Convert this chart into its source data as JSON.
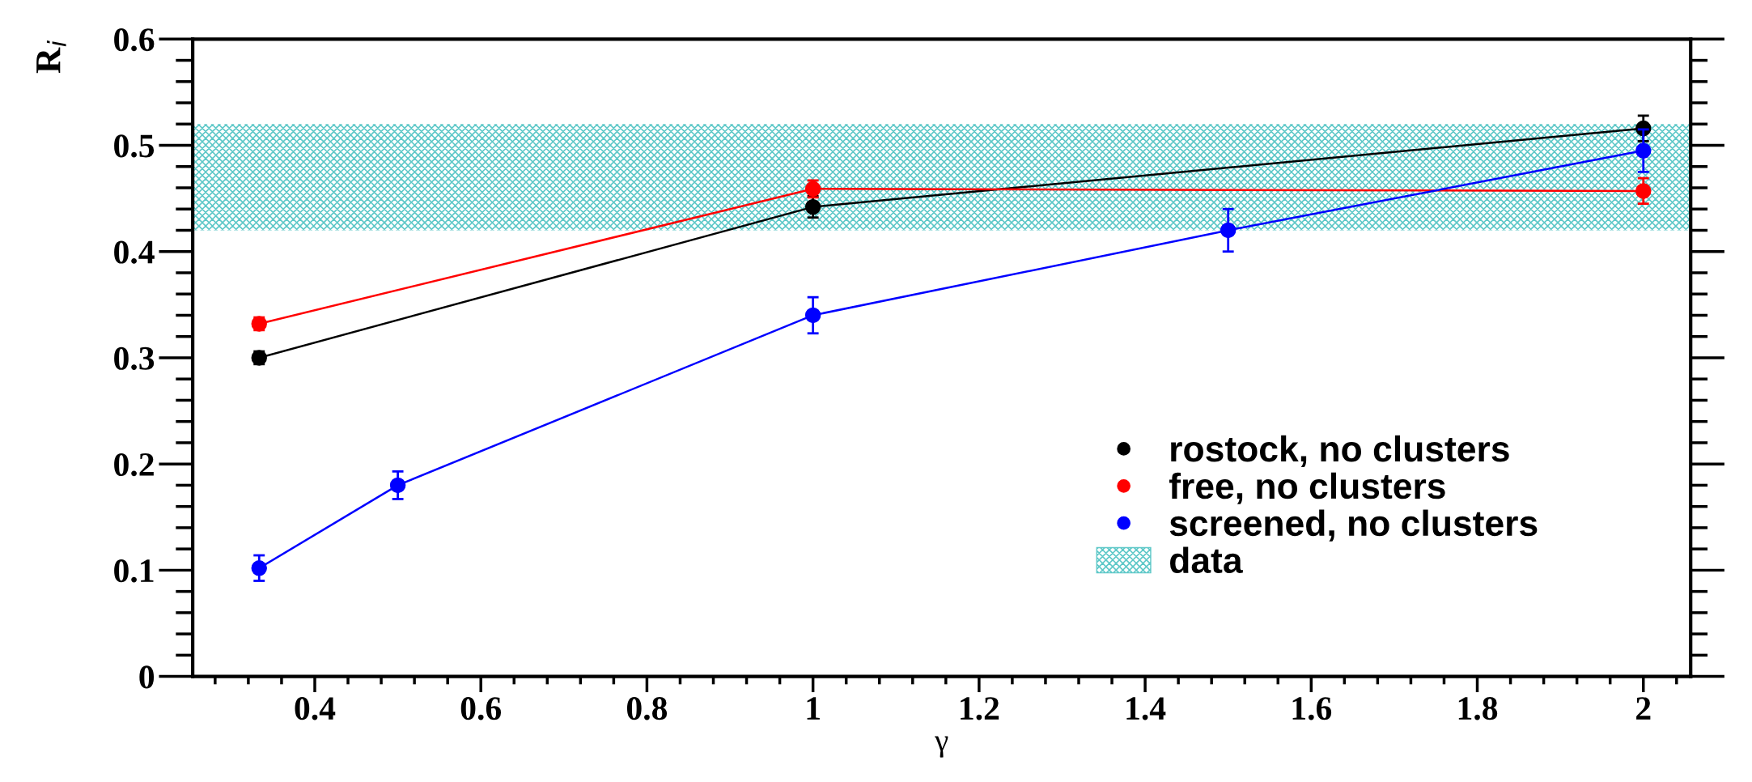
{
  "chart_data": {
    "type": "line",
    "xlabel": "γ",
    "ylabel": "R$_{i}$",
    "xlim": [
      0.253,
      2.057
    ],
    "xticks": [
      {
        "value": 0.4,
        "label": "0.4"
      },
      {
        "value": 0.6,
        "label": "0.6"
      },
      {
        "value": 0.8,
        "label": "0.8"
      },
      1,
      {
        "value": 1.2,
        "label": "1.2"
      },
      {
        "value": 1.4,
        "label": "1.4"
      },
      {
        "value": 1.6,
        "label": "1.6"
      },
      {
        "value": 1.8,
        "label": "1.8"
      },
      2
    ],
    "ylim": [
      0,
      0.6
    ],
    "yticks": [
      0,
      {
        "value": 0.1,
        "label": "0.1"
      },
      {
        "value": 0.2,
        "label": "0.2"
      },
      {
        "value": 0.3,
        "label": "0.3"
      },
      {
        "value": 0.4,
        "label": "0.4"
      },
      {
        "value": 0.5,
        "label": "0.5"
      },
      {
        "value": 0.6,
        "label": "0.6"
      }
    ],
    "series": [
      {
        "name": "rostock, no clusters",
        "color": "#000000",
        "x": [
          0.333,
          1,
          2
        ],
        "values": [
          0.3,
          0.442,
          0.516
        ],
        "errors": [
          0.006,
          0.01,
          0.012
        ]
      },
      {
        "name": "free, no clusters",
        "color": "#ff0000",
        "x": [
          0.333,
          1,
          2
        ],
        "values": [
          0.332,
          0.459,
          0.457
        ],
        "errors": [
          0.006,
          0.008,
          0.012
        ]
      },
      {
        "name": "screened, no clusters",
        "color": "#0000ff",
        "x": [
          0.333,
          0.5,
          1,
          1.5,
          2
        ],
        "values": [
          0.102,
          0.18,
          0.34,
          0.42,
          0.495
        ],
        "errors": [
          0.012,
          0.013,
          0.017,
          0.02,
          0.02
        ]
      }
    ],
    "bands": [
      {
        "axis": "y",
        "from": 0.42,
        "to": 0.52,
        "label": "data",
        "color": "#5ec8c8"
      }
    ],
    "legend": "bottom right",
    "marker": "circle",
    "line_style": "solid",
    "grid": false
  }
}
